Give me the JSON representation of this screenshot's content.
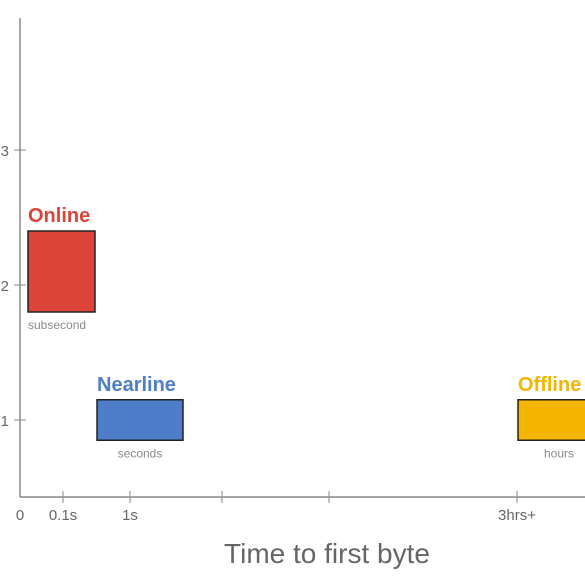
{
  "chart_data": {
    "type": "bar",
    "title": "",
    "xlabel": "Time to first byte",
    "ylabel": "",
    "x_tick_labels": [
      "0",
      "0.1s",
      "1s",
      "",
      "",
      "3hrs+"
    ],
    "y_tick_labels": [
      "1",
      "2",
      "3"
    ],
    "ylim": [
      0.4,
      4.0
    ],
    "grid": false,
    "series": [
      {
        "name": "Online",
        "subtitle": "subsecond",
        "color": "#db4437",
        "x_range": [
          "0",
          "0.1s+"
        ],
        "y_range": [
          1.8,
          2.4
        ]
      },
      {
        "name": "Nearline",
        "subtitle": "seconds",
        "color": "#4e7dc9",
        "x_range": [
          "1s-",
          "1s+"
        ],
        "y_range": [
          0.85,
          1.15
        ]
      },
      {
        "name": "Offline",
        "subtitle": "hours",
        "color": "#f4b400",
        "x_range": [
          "3hrs+",
          ">3hrs"
        ],
        "y_range": [
          0.85,
          1.15
        ]
      }
    ]
  }
}
